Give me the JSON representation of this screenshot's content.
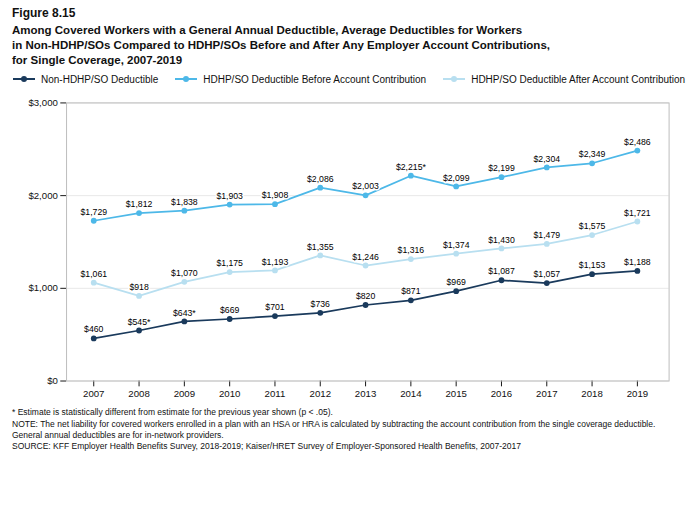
{
  "chart_data": {
    "type": "line",
    "title": "Figure 8.15",
    "subtitle": "Among Covered Workers with a General Annual Deductible, Average Deductibles for Workers\nin Non-HDHP/SOs Compared to HDHP/SOs Before and After Any Employer Account Contributions,\nfor Single Coverage, 2007-2019",
    "annotations": [
      "* Estimate is statistically different from estimate for the previous year shown (p < .05).",
      "NOTE: The net liability for covered workers enrolled in a plan with an HSA or HRA is calculated by subtracting the account contribution from the single coverage deductible. General annual deductibles are for in-network providers.",
      "SOURCE: KFF Employer Health Benefits Survey, 2018-2019; Kaiser/HRET Survey of Employer-Sponsored Health Benefits, 2007-2017"
    ],
    "x": [
      2007,
      2008,
      2009,
      2010,
      2011,
      2012,
      2013,
      2014,
      2015,
      2016,
      2017,
      2018,
      2019
    ],
    "series": [
      {
        "name": "Non-HDHP/SO Deductible",
        "color": "#1a3a5c",
        "values": [
          460,
          545,
          643,
          669,
          701,
          736,
          820,
          871,
          969,
          1087,
          1057,
          1153,
          1188
        ],
        "value_labels": [
          "$460",
          "$545*",
          "$643*",
          "$669",
          "$701",
          "$736",
          "$820",
          "$871",
          "$969",
          "$1,087",
          "$1,057",
          "$1,153",
          "$1,188"
        ]
      },
      {
        "name": "HDHP/SO Deductible Before Account Contribution",
        "color": "#4db8e8",
        "values": [
          1729,
          1812,
          1838,
          1903,
          1908,
          2086,
          2003,
          2215,
          2099,
          2199,
          2304,
          2349,
          2486
        ],
        "value_labels": [
          "$1,729",
          "$1,812",
          "$1,838",
          "$1,903",
          "$1,908",
          "$2,086",
          "$2,003",
          "$2,215*",
          "$2,099",
          "$2,199",
          "$2,304",
          "$2,349",
          "$2,486"
        ]
      },
      {
        "name": "HDHP/SO Deductible After Account Contribution",
        "color": "#b8dff0",
        "values": [
          1061,
          918,
          1070,
          1175,
          1193,
          1355,
          1246,
          1316,
          1374,
          1430,
          1479,
          1575,
          1721
        ],
        "value_labels": [
          "$1,061",
          "$918",
          "$1,070",
          "$1,175",
          "$1,193",
          "$1,355",
          "$1,246",
          "$1,316",
          "$1,374",
          "$1,430",
          "$1,479",
          "$1,575",
          "$1,721"
        ]
      }
    ],
    "xlim": [
      2006.4,
      2019.7
    ],
    "xticks": [
      2007,
      2008,
      2009,
      2010,
      2011,
      2012,
      2013,
      2014,
      2015,
      2016,
      2017,
      2018,
      2019
    ],
    "ylim": [
      0,
      3000
    ],
    "yticks": [
      {
        "value": 0,
        "label": "$0"
      },
      {
        "value": 1000,
        "label": "$1,000"
      },
      {
        "value": 2000,
        "label": "$2,000"
      },
      {
        "value": 3000,
        "label": "$3,000"
      }
    ],
    "grid": true,
    "legend": "top",
    "data_labels": true,
    "marker": "circle"
  }
}
